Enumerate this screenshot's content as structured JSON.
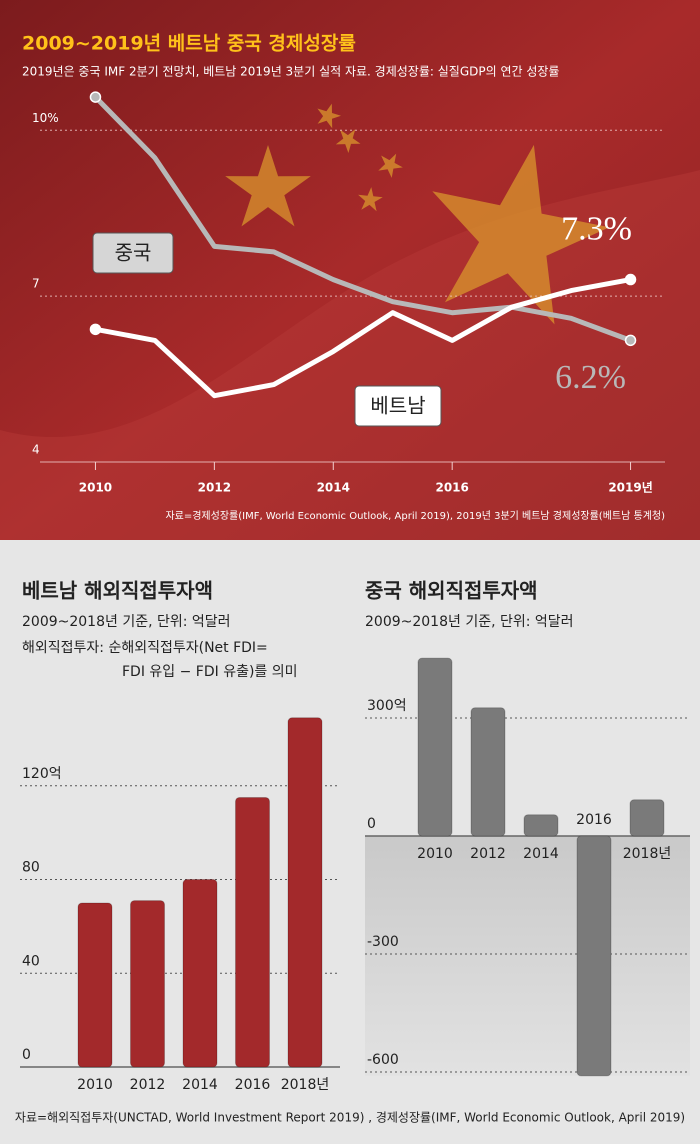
{
  "chart_data": [
    {
      "type": "line",
      "title": "2009~2019년 베트남 중국 경제성장률",
      "subtitle": "2019년은 중국 IMF 2분기 전망치, 베트남 2019년 3분기 실적 자료.  경제성장률: 실질GDP의 연간 성장률",
      "x": [
        2010,
        2011,
        2012,
        2013,
        2014,
        2015,
        2016,
        2017,
        2018,
        2019
      ],
      "xlim": [
        2009,
        2020
      ],
      "xticks": [
        2010,
        2012,
        2014,
        2016,
        {
          "value": 2019,
          "label": "2019년"
        }
      ],
      "ylim": [
        4,
        11
      ],
      "yticks": [
        4,
        7,
        {
          "value": 10,
          "label": "10%"
        }
      ],
      "grid": true,
      "series": [
        {
          "name": "중국",
          "color": "#b8b8b8",
          "values": [
            10.6,
            9.5,
            7.9,
            7.8,
            7.3,
            6.9,
            6.7,
            6.8,
            6.6,
            6.2
          ],
          "value_labels": [
            null,
            null,
            null,
            null,
            null,
            null,
            null,
            null,
            null,
            "6.2%"
          ]
        },
        {
          "name": "베트남",
          "color": "#ffffff",
          "values": [
            6.4,
            6.2,
            5.2,
            5.4,
            6.0,
            6.7,
            6.2,
            6.8,
            7.1,
            7.3
          ],
          "value_labels": [
            null,
            null,
            null,
            null,
            null,
            null,
            null,
            null,
            null,
            "7.3%"
          ]
        }
      ],
      "source": "자료=경제성장률(IMF, World Economic Outlook, April 2019), 2019년 3분기 베트남 경제성장률(베트남 통계청)"
    },
    {
      "type": "bar",
      "title": "베트남 해외직접투자액",
      "subtitle": "2009~2018년 기준,  단위: 억달러",
      "notes": [
        "해외직접투자: 순해외직접투자(Net FDI=",
        "FDI 유입 − FDI 유출)를 의미"
      ],
      "categories": [
        "2010",
        "2012",
        "2014",
        "2016",
        "2018년"
      ],
      "values": [
        70,
        71,
        80,
        115,
        149
      ],
      "color": "#a3292b",
      "ylim": [
        0,
        160
      ],
      "yticks": [
        0,
        40,
        80,
        {
          "value": 120,
          "label": "120억"
        }
      ],
      "grid": true,
      "source": "자료=해외직접투자(UNCTAD, World Investment Report 2019) , 경제성장률(IMF, World Economic Outlook, April 2019)"
    },
    {
      "type": "bar",
      "title": "중국 해외직접투자액",
      "subtitle": "2009~2018년 기준,  단위: 억달러",
      "categories": [
        "2010",
        "2012",
        "2014",
        "2016",
        "2018년"
      ],
      "values": [
        452,
        326,
        54,
        -610,
        92
      ],
      "color": "#7a7a7a",
      "ylim": [
        -630,
        500
      ],
      "yticks": [
        -600,
        -300,
        0,
        {
          "value": 300,
          "label": "300억"
        }
      ],
      "grid": true
    }
  ]
}
